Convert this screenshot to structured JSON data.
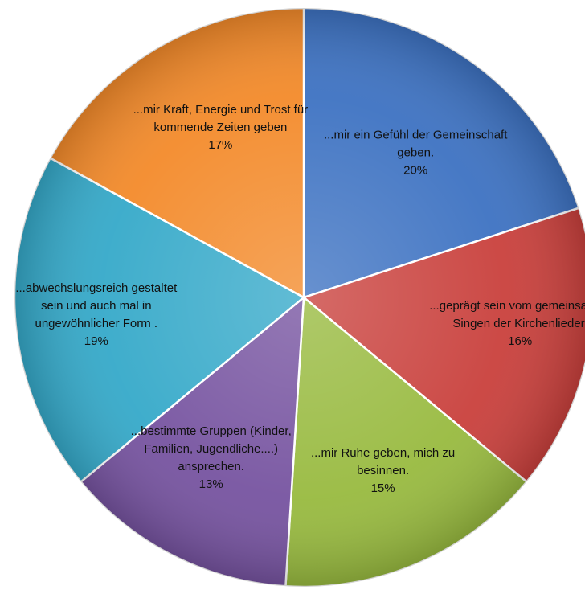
{
  "chart_data": {
    "type": "pie",
    "title": "",
    "start_angle_deg": 0,
    "direction": "clockwise",
    "slices": [
      {
        "label_lines": [
          "...mir ein Gefühl der Gemeinschaft",
          "geben."
        ],
        "percent_label": "20%",
        "value": 20,
        "color": "#3d72c2"
      },
      {
        "label_lines": [
          "...geprägt sein vom gemeinsamen",
          "Singen der Kirchenlieder."
        ],
        "percent_label": "16%",
        "value": 16,
        "color": "#c9403c"
      },
      {
        "label_lines": [
          "...mir Ruhe geben, mich zu",
          "besinnen."
        ],
        "percent_label": "15%",
        "value": 15,
        "color": "#98ba3f"
      },
      {
        "label_lines": [
          "...bestimmte Gruppen (Kinder,",
          "Familien, Jugendliche....)",
          "ansprechen."
        ],
        "percent_label": "13%",
        "value": 13,
        "color": "#7653a0"
      },
      {
        "label_lines": [
          "...abwechslungsreich gestaltet",
          "sein und auch mal in",
          "ungewöhnlicher Form ."
        ],
        "percent_label": "19%",
        "value": 19,
        "color": "#35a9c9"
      },
      {
        "label_lines": [
          "...mir Kraft, Energie und Trost für",
          "kommende Zeiten geben"
        ],
        "percent_label": "17%",
        "value": 17,
        "color": "#f38a2a"
      }
    ]
  }
}
